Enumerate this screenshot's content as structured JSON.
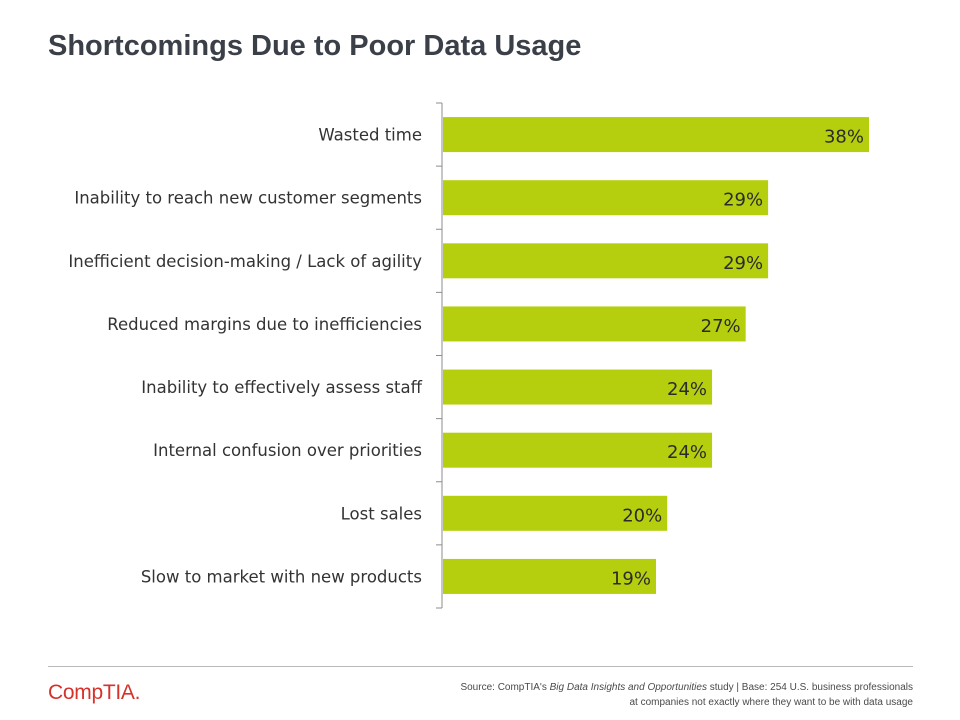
{
  "header": {
    "title": "Shortcomings Due to Poor Data Usage"
  },
  "chart_data": {
    "type": "bar",
    "orientation": "horizontal",
    "title": "Shortcomings Due to Poor Data Usage",
    "categories": [
      "Wasted time",
      "Inability to reach new customer segments",
      "Inefficient decision-making / Lack of agility",
      "Reduced margins due to inefficiencies",
      "Inability to effectively assess staff",
      "Internal confusion over priorities",
      "Lost sales",
      "Slow to market with new products"
    ],
    "values": [
      38,
      29,
      29,
      27,
      24,
      24,
      20,
      19
    ],
    "value_labels": [
      "38%",
      "29%",
      "29%",
      "27%",
      "24%",
      "24%",
      "20%",
      "19%"
    ],
    "xlim": [
      0,
      38
    ],
    "bar_color": "#b5cf0f",
    "grid": false
  },
  "footer": {
    "logo_text": "CompTIA.",
    "source_prefix": "Source: CompTIA's ",
    "source_study": "Big Data Insights and Opportunities",
    "source_suffix": " study | Base: 254 U.S. business professionals",
    "source_line2": "at companies not exactly where they want to be with data usage",
    "brand_color": "#d5322c",
    "rule_color": "#b9b9b9"
  }
}
